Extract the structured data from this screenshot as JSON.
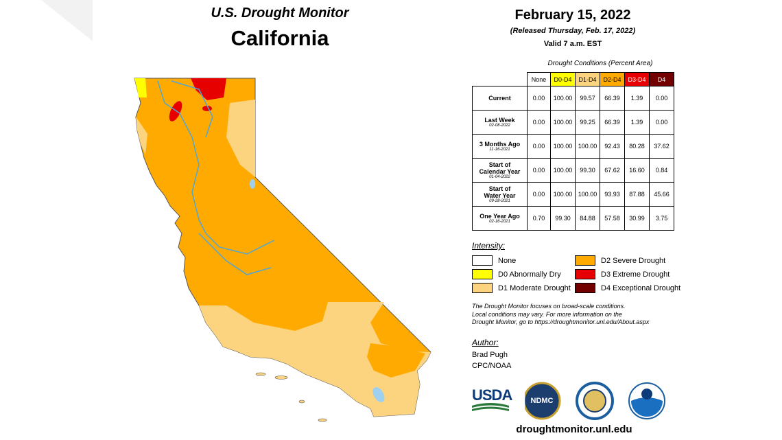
{
  "header": {
    "title": "U.S. Drought Monitor",
    "state": "California",
    "date": "February 15, 2022",
    "released": "(Released Thursday, Feb. 17, 2022)",
    "valid": "Valid 7 a.m. EST"
  },
  "table": {
    "caption": "Drought Conditions (Percent Area)",
    "columns": [
      {
        "label": "None",
        "color": "#ffffff",
        "text_color": "#000000"
      },
      {
        "label": "D0-D4",
        "color": "#ffff00",
        "text_color": "#000000"
      },
      {
        "label": "D1-D4",
        "color": "#fcd37f",
        "text_color": "#000000"
      },
      {
        "label": "D2-D4",
        "color": "#ffaa00",
        "text_color": "#000000"
      },
      {
        "label": "D3-D4",
        "color": "#e60000",
        "text_color": "#ffffff"
      },
      {
        "label": "D4",
        "color": "#730000",
        "text_color": "#ffffff"
      }
    ],
    "rows": [
      {
        "label": [
          "Current"
        ],
        "values": [
          "0.00",
          "100.00",
          "99.57",
          "66.39",
          "1.39",
          "0.00"
        ]
      },
      {
        "label": [
          "Last Week"
        ],
        "date": "02-08-2022",
        "values": [
          "0.00",
          "100.00",
          "99.25",
          "66.39",
          "1.39",
          "0.00"
        ]
      },
      {
        "label": [
          "3 Months Ago"
        ],
        "date": "11-16-2021",
        "values": [
          "0.00",
          "100.00",
          "100.00",
          "92.43",
          "80.28",
          "37.62"
        ]
      },
      {
        "label": [
          "Start of",
          "Calendar Year"
        ],
        "date": "01-04-2022",
        "values": [
          "0.00",
          "100.00",
          "99.30",
          "67.62",
          "16.60",
          "0.84"
        ]
      },
      {
        "label": [
          "Start of",
          "Water Year"
        ],
        "date": "09-28-2021",
        "values": [
          "0.00",
          "100.00",
          "100.00",
          "93.93",
          "87.88",
          "45.66"
        ]
      },
      {
        "label": [
          "One Year Ago"
        ],
        "date": "02-16-2021",
        "values": [
          "0.70",
          "99.30",
          "84.88",
          "57.58",
          "30.99",
          "3.75"
        ]
      }
    ]
  },
  "legend": {
    "title": "Intensity:",
    "items": [
      {
        "label": "None",
        "color": "#ffffff"
      },
      {
        "label": "D0 Abnormally Dry",
        "color": "#ffff00"
      },
      {
        "label": "D1 Moderate Drought",
        "color": "#fcd37f"
      },
      {
        "label": "D2 Severe Drought",
        "color": "#ffaa00"
      },
      {
        "label": "D3 Extreme Drought",
        "color": "#e60000"
      },
      {
        "label": "D4 Exceptional Drought",
        "color": "#730000"
      }
    ]
  },
  "note": [
    "The Drought Monitor focuses on broad-scale conditions.",
    "Local conditions may vary. For more information on the",
    "Drought Monitor, go to https://droughtmonitor.unl.edu/About.aspx"
  ],
  "author": {
    "title": "Author:",
    "lines": [
      "Brad Pugh",
      "CPC/NOAA"
    ]
  },
  "logos": {
    "usda": "USDA",
    "ndmc": "NDMC"
  },
  "footer": {
    "url": "droughtmonitor.unl.edu"
  }
}
